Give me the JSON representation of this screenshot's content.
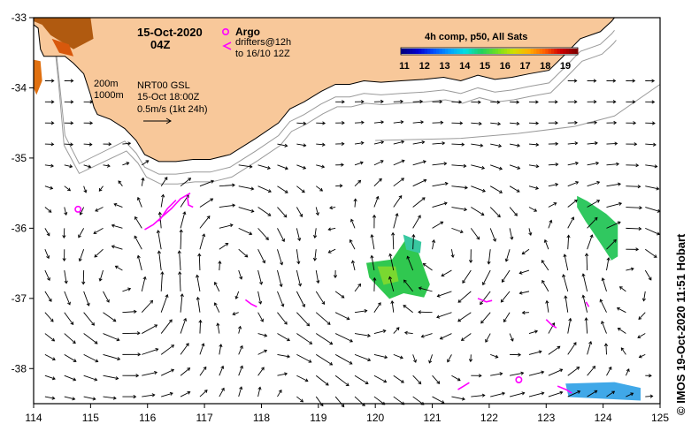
{
  "title": {
    "date": "15-Oct-2020",
    "time": "04Z"
  },
  "legend_argo": {
    "label": "Argo",
    "color": "#ff00ff"
  },
  "legend_drifters": {
    "line1": "drifters@12h",
    "line2": "to 16/10 12Z",
    "color": "#ff00ff"
  },
  "contours": {
    "label_200m": "200m",
    "label_1000m": "1000m"
  },
  "velocity": {
    "line1": "NRT00 GSL",
    "line2": "15-Oct 18:00Z",
    "scale_label": "0.5m/s (1kt 24h)"
  },
  "colorbar": {
    "title": "4h comp, p50, All Sats",
    "ticks": [
      "11",
      "12",
      "13",
      "14",
      "15",
      "16",
      "17",
      "18",
      "19"
    ],
    "min": 11,
    "max": 19
  },
  "credit": "© IMOS 19-Oct-2020 11:51 Hobart",
  "axes": {
    "x_ticks": [
      "114",
      "115",
      "116",
      "117",
      "118",
      "119",
      "120",
      "121",
      "122",
      "123",
      "124",
      "125"
    ],
    "y_ticks": [
      "-33",
      "-34",
      "-35",
      "-36",
      "-37",
      "-38"
    ],
    "lon_range": [
      114,
      125
    ],
    "lat_range": [
      -38.5,
      -33
    ]
  },
  "colors": {
    "land": "#f8c89a",
    "coast": "#000000",
    "isobath": "#9a9a9a",
    "arrow": "#000000",
    "drifter": "#ff00ff"
  },
  "argo_floats": [
    {
      "lon": 114.78,
      "lat": -35.73
    },
    {
      "lon": 122.52,
      "lat": -38.16
    }
  ],
  "drifters": [
    [
      [
        115.95,
        -36.02
      ],
      [
        116.1,
        -35.95
      ],
      [
        116.28,
        -35.82
      ],
      [
        116.42,
        -35.72
      ],
      [
        116.58,
        -35.58
      ],
      [
        116.75,
        -35.5
      ]
    ],
    [
      [
        116.2,
        -35.9
      ],
      [
        116.35,
        -35.72
      ],
      [
        116.5,
        -35.6
      ]
    ],
    [
      [
        116.7,
        -35.55
      ],
      [
        116.72,
        -35.67
      ],
      [
        116.8,
        -35.7
      ]
    ],
    [
      [
        117.72,
        -37.02
      ],
      [
        117.82,
        -37.08
      ],
      [
        117.92,
        -37.12
      ]
    ],
    [
      [
        121.8,
        -37.0
      ],
      [
        121.95,
        -37.05
      ],
      [
        122.05,
        -37.03
      ]
    ],
    [
      [
        123.0,
        -37.3
      ],
      [
        123.1,
        -37.38
      ],
      [
        123.18,
        -37.42
      ]
    ],
    [
      [
        123.7,
        -37.05
      ],
      [
        123.75,
        -37.12
      ]
    ],
    [
      [
        121.45,
        -38.3
      ],
      [
        121.55,
        -38.25
      ],
      [
        121.65,
        -38.2
      ]
    ],
    [
      [
        123.2,
        -38.25
      ],
      [
        123.35,
        -38.3
      ],
      [
        123.45,
        -38.35
      ]
    ]
  ],
  "sst_patches": [
    {
      "name": "central-patch",
      "color": "#30c850",
      "points": [
        [
          119.85,
          -36.5
        ],
        [
          120.3,
          -36.45
        ],
        [
          120.55,
          -36.15
        ],
        [
          120.75,
          -36.35
        ],
        [
          120.95,
          -36.8
        ],
        [
          120.85,
          -36.98
        ],
        [
          120.5,
          -36.92
        ],
        [
          120.25,
          -37.0
        ],
        [
          119.9,
          -36.7
        ]
      ]
    },
    {
      "name": "central-core",
      "color": "#7ad830",
      "points": [
        [
          120.05,
          -36.55
        ],
        [
          120.35,
          -36.55
        ],
        [
          120.4,
          -36.75
        ],
        [
          120.15,
          -36.8
        ]
      ]
    },
    {
      "name": "central-north",
      "color": "#38c8a0",
      "points": [
        [
          120.5,
          -36.1
        ],
        [
          120.8,
          -36.2
        ],
        [
          120.78,
          -36.35
        ],
        [
          120.55,
          -36.3
        ]
      ]
    },
    {
      "name": "east-patch",
      "color": "#30c860",
      "points": [
        [
          123.55,
          -35.55
        ],
        [
          123.72,
          -35.62
        ],
        [
          124.05,
          -35.8
        ],
        [
          124.25,
          -35.95
        ],
        [
          124.25,
          -36.4
        ],
        [
          124.15,
          -36.45
        ],
        [
          123.95,
          -36.2
        ],
        [
          123.7,
          -35.9
        ],
        [
          123.55,
          -35.7
        ]
      ]
    },
    {
      "name": "south-east-patch",
      "color": "#40a8e8",
      "points": [
        [
          123.35,
          -38.22
        ],
        [
          124.2,
          -38.2
        ],
        [
          124.65,
          -38.28
        ],
        [
          124.65,
          -38.45
        ],
        [
          123.4,
          -38.4
        ]
      ]
    }
  ]
}
